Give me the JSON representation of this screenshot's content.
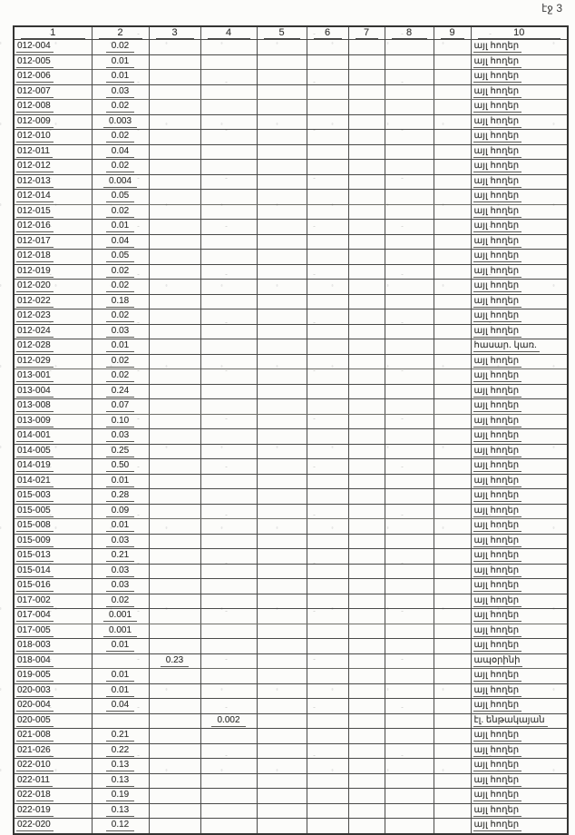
{
  "page": {
    "page_label": "էջ 3"
  },
  "table": {
    "column_headers": [
      "1",
      "2",
      "3",
      "4",
      "5",
      "6",
      "7",
      "8",
      "9",
      "10"
    ],
    "rows": [
      [
        "012-004",
        "0.02",
        "",
        "",
        "",
        "",
        "",
        "",
        "",
        "այլ հողեր"
      ],
      [
        "012-005",
        "0.01",
        "",
        "",
        "",
        "",
        "",
        "",
        "",
        "այլ հողեր"
      ],
      [
        "012-006",
        "0.01",
        "",
        "",
        "",
        "",
        "",
        "",
        "",
        "այլ հողեր"
      ],
      [
        "012-007",
        "0.03",
        "",
        "",
        "",
        "",
        "",
        "",
        "",
        "այլ հողեր"
      ],
      [
        "012-008",
        "0.02",
        "",
        "",
        "",
        "",
        "",
        "",
        "",
        "այլ հողեր"
      ],
      [
        "012-009",
        "0.003",
        "",
        "",
        "",
        "",
        "",
        "",
        "",
        "այլ հողեր"
      ],
      [
        "012-010",
        "0.02",
        "",
        "",
        "",
        "",
        "",
        "",
        "",
        "այլ հողեր"
      ],
      [
        "012-011",
        "0.04",
        "",
        "",
        "",
        "",
        "",
        "",
        "",
        "այլ հողեր"
      ],
      [
        "012-012",
        "0.02",
        "",
        "",
        "",
        "",
        "",
        "",
        "",
        "այլ հողեր"
      ],
      [
        "012-013",
        "0.004",
        "",
        "",
        "",
        "",
        "",
        "",
        "",
        "այլ հողեր"
      ],
      [
        "012-014",
        "0.05",
        "",
        "",
        "",
        "",
        "",
        "",
        "",
        "այլ հողեր"
      ],
      [
        "012-015",
        "0.02",
        "",
        "",
        "",
        "",
        "",
        "",
        "",
        "այլ հողեր"
      ],
      [
        "012-016",
        "0.01",
        "",
        "",
        "",
        "",
        "",
        "",
        "",
        "այլ հողեր"
      ],
      [
        "012-017",
        "0.04",
        "",
        "",
        "",
        "",
        "",
        "",
        "",
        "այլ հողեր"
      ],
      [
        "012-018",
        "0.05",
        "",
        "",
        "",
        "",
        "",
        "",
        "",
        "այլ հողեր"
      ],
      [
        "012-019",
        "0.02",
        "",
        "",
        "",
        "",
        "",
        "",
        "",
        "այլ հողեր"
      ],
      [
        "012-020",
        "0.02",
        "",
        "",
        "",
        "",
        "",
        "",
        "",
        "այլ հողեր"
      ],
      [
        "012-022",
        "0.18",
        "",
        "",
        "",
        "",
        "",
        "",
        "",
        "այլ հողեր"
      ],
      [
        "012-023",
        "0.02",
        "",
        "",
        "",
        "",
        "",
        "",
        "",
        "այլ հողեր"
      ],
      [
        "012-024",
        "0.03",
        "",
        "",
        "",
        "",
        "",
        "",
        "",
        "այլ հողեր"
      ],
      [
        "012-028",
        "0.01",
        "",
        "",
        "",
        "",
        "",
        "",
        "",
        "հասար. կառ."
      ],
      [
        "012-029",
        "0.02",
        "",
        "",
        "",
        "",
        "",
        "",
        "",
        "այլ հողեր"
      ],
      [
        "013-001",
        "0.02",
        "",
        "",
        "",
        "",
        "",
        "",
        "",
        "այլ հողեր"
      ],
      [
        "013-004",
        "0.24",
        "",
        "",
        "",
        "",
        "",
        "",
        "",
        "այլ հողեր"
      ],
      [
        "013-008",
        "0.07",
        "",
        "",
        "",
        "",
        "",
        "",
        "",
        "այլ հողեր"
      ],
      [
        "013-009",
        "0.10",
        "",
        "",
        "",
        "",
        "",
        "",
        "",
        "այլ հողեր"
      ],
      [
        "014-001",
        "0.03",
        "",
        "",
        "",
        "",
        "",
        "",
        "",
        "այլ հողեր"
      ],
      [
        "014-005",
        "0.25",
        "",
        "",
        "",
        "",
        "",
        "",
        "",
        "այլ հողեր"
      ],
      [
        "014-019",
        "0.50",
        "",
        "",
        "",
        "",
        "",
        "",
        "",
        "այլ հողեր"
      ],
      [
        "014-021",
        "0.01",
        "",
        "",
        "",
        "",
        "",
        "",
        "",
        "այլ հողեր"
      ],
      [
        "015-003",
        "0.28",
        "",
        "",
        "",
        "",
        "",
        "",
        "",
        "այլ հողեր"
      ],
      [
        "015-005",
        "0.09",
        "",
        "",
        "",
        "",
        "",
        "",
        "",
        "այլ հողեր"
      ],
      [
        "015-008",
        "0.01",
        "",
        "",
        "",
        "",
        "",
        "",
        "",
        "այլ հողեր"
      ],
      [
        "015-009",
        "0.03",
        "",
        "",
        "",
        "",
        "",
        "",
        "",
        "այլ հողեր"
      ],
      [
        "015-013",
        "0.21",
        "",
        "",
        "",
        "",
        "",
        "",
        "",
        "այլ հողեր"
      ],
      [
        "015-014",
        "0.03",
        "",
        "",
        "",
        "",
        "",
        "",
        "",
        "այլ հողեր"
      ],
      [
        "015-016",
        "0.03",
        "",
        "",
        "",
        "",
        "",
        "",
        "",
        "այլ հողեր"
      ],
      [
        "017-002",
        "0.02",
        "",
        "",
        "",
        "",
        "",
        "",
        "",
        "այլ հողեր"
      ],
      [
        "017-004",
        "0.001",
        "",
        "",
        "",
        "",
        "",
        "",
        "",
        "այլ հողեր"
      ],
      [
        "017-005",
        "0.001",
        "",
        "",
        "",
        "",
        "",
        "",
        "",
        "այլ հողեր"
      ],
      [
        "018-003",
        "0.01",
        "",
        "",
        "",
        "",
        "",
        "",
        "",
        "այլ հողեր"
      ],
      [
        "018-004",
        "",
        "0.23",
        "",
        "",
        "",
        "",
        "",
        "",
        "ապօրինի"
      ],
      [
        "019-005",
        "0.01",
        "",
        "",
        "",
        "",
        "",
        "",
        "",
        "այլ հողեր"
      ],
      [
        "020-003",
        "0.01",
        "",
        "",
        "",
        "",
        "",
        "",
        "",
        "այլ հողեր"
      ],
      [
        "020-004",
        "0.04",
        "",
        "",
        "",
        "",
        "",
        "",
        "",
        "այլ հողեր"
      ],
      [
        "020-005",
        "",
        "",
        "0.002",
        "",
        "",
        "",
        "",
        "",
        "էլ. ենթակայան"
      ],
      [
        "021-008",
        "0.21",
        "",
        "",
        "",
        "",
        "",
        "",
        "",
        "այլ հողեր"
      ],
      [
        "021-026",
        "0.22",
        "",
        "",
        "",
        "",
        "",
        "",
        "",
        "այլ հողեր"
      ],
      [
        "022-010",
        "0.13",
        "",
        "",
        "",
        "",
        "",
        "",
        "",
        "այլ հողեր"
      ],
      [
        "022-011",
        "0.13",
        "",
        "",
        "",
        "",
        "",
        "",
        "",
        "այլ հողեր"
      ],
      [
        "022-018",
        "0.19",
        "",
        "",
        "",
        "",
        "",
        "",
        "",
        "այլ հողեր"
      ],
      [
        "022-019",
        "0.13",
        "",
        "",
        "",
        "",
        "",
        "",
        "",
        "այլ հողեր"
      ],
      [
        "022-020",
        "0.12",
        "",
        "",
        "",
        "",
        "",
        "",
        "",
        "այլ հողեր"
      ]
    ]
  }
}
